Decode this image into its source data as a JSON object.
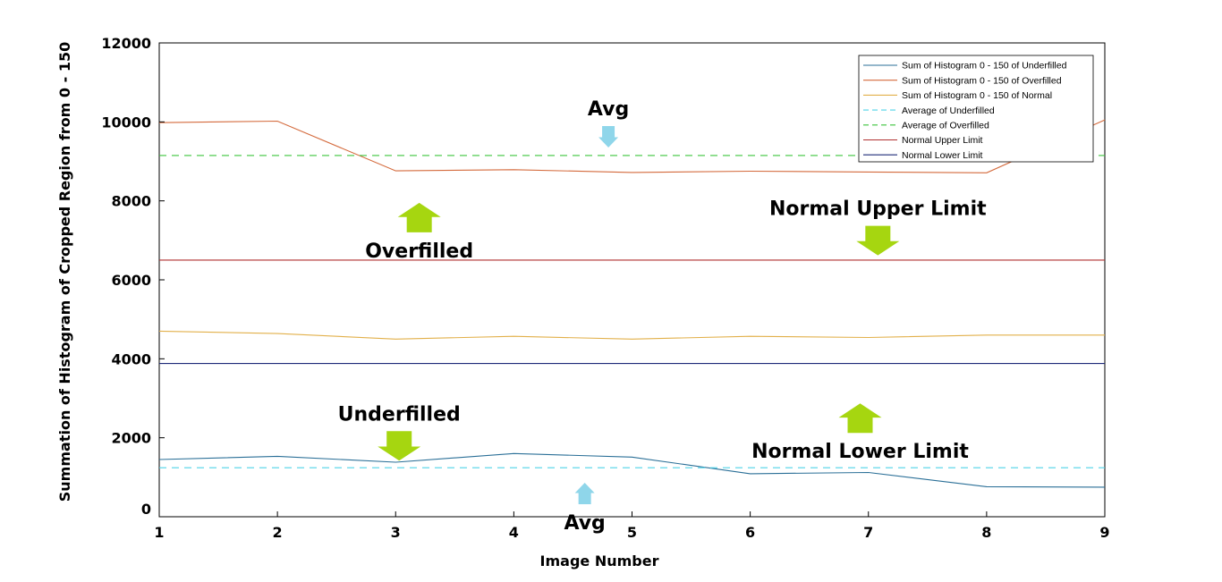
{
  "chart_data": {
    "type": "line",
    "xlabel": "Image Number",
    "ylabel": "Summation of Histogram of Cropped Region from 0 - 150",
    "xlim": [
      1,
      9
    ],
    "ylim": [
      0,
      12000
    ],
    "x_ticks": [
      "1",
      "2",
      "3",
      "4",
      "5",
      "6",
      "7",
      "8",
      "9"
    ],
    "y_ticks": [
      "0",
      "2000",
      "4000",
      "6000",
      "8000",
      "10000",
      "12000"
    ],
    "grid": false,
    "legend_position": "top-right",
    "x": [
      1,
      2,
      3,
      4,
      5,
      6,
      7,
      8,
      9
    ],
    "series": [
      {
        "name": "Sum of Histogram 0 - 150 of Underfilled",
        "color": "#2a6f97",
        "style": "solid",
        "values": [
          1450,
          1530,
          1380,
          1600,
          1510,
          1090,
          1120,
          760,
          750
        ]
      },
      {
        "name": "Sum of Histogram 0 - 150 of Overfilled",
        "color": "#d46a3c",
        "style": "solid",
        "values": [
          9980,
          10020,
          8760,
          8790,
          8720,
          8750,
          8730,
          8710,
          10050
        ]
      },
      {
        "name": "Sum of Histogram 0 - 150 of Normal",
        "color": "#e2b04a",
        "style": "solid",
        "values": [
          4700,
          4640,
          4500,
          4570,
          4500,
          4570,
          4540,
          4600,
          4600
        ]
      },
      {
        "name": "Average of Underfilled",
        "color": "#4fd3e8",
        "style": "dashed",
        "values": [
          1240,
          1240,
          1240,
          1240,
          1240,
          1240,
          1240,
          1240,
          1240
        ]
      },
      {
        "name": "Average of Overfilled",
        "color": "#3cc43c",
        "style": "dashed",
        "values": [
          9150,
          9150,
          9150,
          9150,
          9150,
          9150,
          9150,
          9150,
          9150
        ]
      },
      {
        "name": "Normal Upper Limit",
        "color": "#b03030",
        "style": "solid",
        "values": [
          6500,
          6500,
          6500,
          6500,
          6500,
          6500,
          6500,
          6500,
          6500
        ]
      },
      {
        "name": "Normal Lower Limit",
        "color": "#1e2a78",
        "style": "solid",
        "values": [
          3880,
          3880,
          3880,
          3880,
          3880,
          3880,
          3880,
          3880,
          3880
        ]
      }
    ],
    "annotations": [
      {
        "id": "avg-top",
        "text": "Avg",
        "arrow": "down",
        "arrow_color": "#8fd6ea",
        "x": 4.8,
        "y": 9350
      },
      {
        "id": "overfilled",
        "text": "Overfilled",
        "arrow": "up",
        "arrow_color": "#a6d610",
        "x": 3.2,
        "y": 7950
      },
      {
        "id": "upper-limit",
        "text": "Normal Upper Limit",
        "arrow": "down",
        "arrow_color": "#a6d610",
        "x": 7.08,
        "y": 6620
      },
      {
        "id": "lower-limit",
        "text": "Normal Lower Limit",
        "arrow": "up",
        "arrow_color": "#a6d610",
        "x": 6.93,
        "y": 2870
      },
      {
        "id": "underfilled",
        "text": "Underfilled",
        "arrow": "down",
        "arrow_color": "#a6d610",
        "x": 3.03,
        "y": 1420
      },
      {
        "id": "avg-bottom",
        "text": "Avg",
        "arrow": "up",
        "arrow_color": "#8fd6ea",
        "x": 4.6,
        "y": 860
      }
    ]
  }
}
